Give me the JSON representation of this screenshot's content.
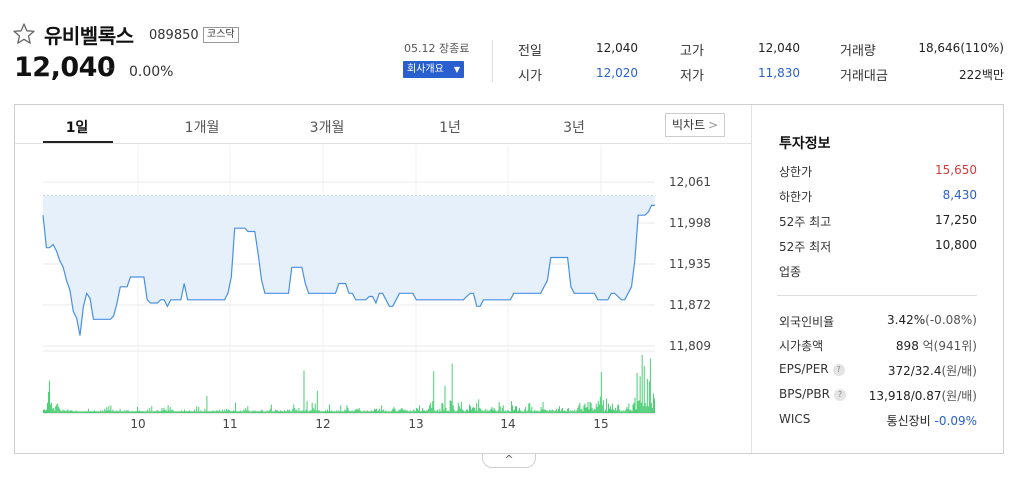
{
  "stock": {
    "name": "유비벨록스",
    "code": "089850",
    "market": "코스닥",
    "price": "12,040",
    "change_sign": "–",
    "change_rate": "0.00%",
    "date": "05.12 장종료",
    "corp_info_label": "회사개요",
    "quote": [
      {
        "label": "전일",
        "value": "12,040",
        "color": "#222222"
      },
      {
        "label": "시가",
        "value": "12,020",
        "color": "#2a5fcf"
      },
      {
        "label": "고가",
        "value": "12,040",
        "color": "#222222"
      },
      {
        "label": "저가",
        "value": "11,830",
        "color": "#2a5fcf"
      },
      {
        "label": "거래량",
        "value": "18,646(110%)",
        "color": "#222222"
      },
      {
        "label": "거래대금",
        "value": "222백만",
        "color": "#222222"
      }
    ]
  },
  "tabs": [
    "1일",
    "1개월",
    "3개월",
    "1년",
    "3년"
  ],
  "big_chart_label": "빅차트",
  "big_chart_arrow": ">",
  "fold_arrow": "^",
  "invest": {
    "title": "투자정보",
    "group1": [
      {
        "label": "상한가",
        "value": "15,650",
        "color": "#d63a3a"
      },
      {
        "label": "하한가",
        "value": "8,430",
        "color": "#2a5fcf"
      },
      {
        "label": "52주 최고",
        "value": "17,250",
        "color": "#222222"
      },
      {
        "label": "52주 최저",
        "value": "10,800",
        "color": "#222222"
      },
      {
        "label": "업종",
        "value": "",
        "color": "#222222"
      }
    ],
    "group2": [
      {
        "label": "외국인비율",
        "value": "3.42%",
        "extra": "(-0.08%)",
        "help": false
      },
      {
        "label": "시가총액",
        "value": "898",
        "extra": "억(941위)",
        "help": false
      },
      {
        "label": "EPS/PER",
        "value": "372/32.4",
        "extra": "(원/배)",
        "help": true
      },
      {
        "label": "BPS/PBR",
        "value": "13,918/0.87",
        "extra": "(원/배)",
        "help": true
      },
      {
        "label": "WICS",
        "value": "통신장비",
        "extra": "-0.09%",
        "help": false
      }
    ]
  },
  "chart_data": {
    "type": "area",
    "y_ticks": [
      "12,061",
      "11,998",
      "11,935",
      "11,872",
      "11,809"
    ],
    "ylim": [
      11809,
      12061
    ],
    "x_ticks": [
      "10",
      "11",
      "12",
      "13",
      "14",
      "15"
    ],
    "reference_value": 12040,
    "price": [
      12010,
      11960,
      11960,
      11965,
      11955,
      11940,
      11930,
      11910,
      11895,
      11862,
      11852,
      11825,
      11870,
      11890,
      11882,
      11850,
      11850,
      11850,
      11850,
      11850,
      11850,
      11855,
      11875,
      11900,
      11900,
      11900,
      11915,
      11915,
      11915,
      11915,
      11915,
      11880,
      11875,
      11875,
      11875,
      11880,
      11880,
      11870,
      11880,
      11880,
      11880,
      11880,
      11905,
      11880,
      11880,
      11880,
      11880,
      11880,
      11880,
      11880,
      11880,
      11880,
      11880,
      11880,
      11880,
      11890,
      11915,
      11990,
      11990,
      11990,
      11990,
      11985,
      11985,
      11985,
      11950,
      11910,
      11890,
      11890,
      11890,
      11890,
      11890,
      11890,
      11890,
      11890,
      11930,
      11930,
      11930,
      11930,
      11905,
      11890,
      11890,
      11890,
      11890,
      11890,
      11890,
      11890,
      11890,
      11890,
      11905,
      11905,
      11905,
      11890,
      11890,
      11880,
      11880,
      11880,
      11880,
      11885,
      11885,
      11875,
      11890,
      11890,
      11880,
      11870,
      11870,
      11880,
      11890,
      11890,
      11890,
      11890,
      11890,
      11880,
      11880,
      11880,
      11880,
      11880,
      11880,
      11880,
      11880,
      11880,
      11880,
      11880,
      11880,
      11880,
      11880,
      11880,
      11885,
      11890,
      11890,
      11870,
      11870,
      11880,
      11880,
      11880,
      11880,
      11880,
      11880,
      11880,
      11880,
      11880,
      11890,
      11890,
      11890,
      11890,
      11890,
      11890,
      11890,
      11890,
      11890,
      11900,
      11910,
      11945,
      11945,
      11945,
      11945,
      11945,
      11945,
      11900,
      11890,
      11890,
      11890,
      11890,
      11890,
      11890,
      11890,
      11880,
      11880,
      11880,
      11880,
      11890,
      11890,
      11885,
      11880,
      11880,
      11890,
      11900,
      11940,
      12010,
      12010,
      12010,
      12015,
      12025,
      12025
    ],
    "volume": [
      4,
      4,
      3,
      4,
      12,
      25,
      38,
      10,
      12,
      5,
      6,
      3,
      8,
      10,
      11,
      7,
      5,
      3,
      2,
      4,
      3,
      3,
      2,
      3,
      4,
      2,
      3,
      3,
      3,
      2,
      2,
      2,
      3,
      2,
      2,
      2,
      2,
      2,
      2,
      2,
      2,
      2,
      2,
      2,
      5,
      2,
      2,
      2,
      2,
      2,
      3,
      2,
      2,
      2,
      2,
      2,
      3,
      2,
      3,
      2,
      5,
      3,
      7,
      3,
      8,
      3,
      9,
      2,
      4,
      2,
      2,
      2,
      3,
      2,
      2,
      5,
      2,
      2,
      2,
      3,
      2,
      3,
      3,
      3,
      2,
      2,
      2,
      2,
      2,
      2,
      2,
      2,
      7,
      2,
      3,
      2,
      2,
      2,
      2,
      2,
      2,
      2,
      4,
      2,
      6,
      2,
      8,
      2,
      2,
      2,
      2,
      3,
      3,
      2,
      2,
      2,
      6,
      3,
      6,
      3,
      4,
      2,
      9,
      3,
      7,
      3,
      4,
      3,
      2,
      2,
      2,
      2,
      2,
      2,
      2,
      3,
      2,
      2,
      4,
      2,
      2,
      2,
      2,
      3,
      2,
      2,
      2,
      2,
      4,
      2,
      8,
      2,
      7,
      2,
      3,
      2,
      2,
      2,
      5,
      2,
      20,
      2,
      2,
      2,
      2,
      2,
      3,
      2,
      2,
      3,
      3,
      2,
      4,
      2,
      2,
      4,
      2,
      4,
      2,
      5,
      3,
      4,
      3,
      2,
      2,
      2,
      3,
      2,
      12,
      2,
      2,
      2,
      2,
      3,
      2,
      2,
      4,
      3,
      6,
      3,
      8,
      3,
      2,
      2,
      2,
      3,
      2,
      3,
      2,
      2,
      2,
      2,
      2,
      3,
      4,
      2,
      2,
      2,
      2,
      3,
      2,
      3,
      5,
      10,
      2,
      2,
      2,
      4,
      3,
      3,
      2,
      2,
      3,
      2,
      2,
      2,
      3,
      2,
      2,
      4,
      3,
      4,
      2,
      2,
      5,
      10,
      6,
      3,
      4,
      2,
      6,
      2,
      3,
      2,
      3,
      50,
      2,
      4,
      14,
      2,
      2,
      3,
      3,
      12,
      6,
      4,
      11,
      3,
      26,
      3,
      3,
      2,
      2,
      2,
      2,
      2,
      3,
      2,
      4,
      2,
      10,
      2,
      3,
      2,
      2,
      2,
      2,
      3,
      2,
      3,
      2,
      9,
      2,
      2,
      2,
      4,
      3,
      9,
      6,
      3,
      2,
      2,
      3,
      2,
      2,
      4,
      4,
      5,
      4,
      6,
      3,
      2,
      2,
      2,
      3,
      2,
      2,
      3,
      2,
      2,
      2,
      3,
      2,
      2,
      5,
      4,
      5,
      2,
      3,
      5,
      2,
      9,
      3,
      4,
      2,
      3,
      2,
      2,
      2,
      2,
      2,
      3,
      5,
      7,
      5,
      2,
      2,
      2,
      4,
      3,
      5,
      6,
      4,
      3,
      4,
      3,
      3,
      2,
      2,
      3,
      2,
      2,
      4,
      3,
      2,
      6,
      5,
      3,
      9,
      2,
      2,
      6,
      3,
      3,
      2,
      3,
      3,
      5,
      9,
      12,
      6,
      14,
      49,
      3,
      2,
      3,
      4,
      2,
      5,
      2,
      12,
      11,
      3,
      32,
      6,
      2,
      3,
      2,
      15,
      14,
      58,
      9,
      4,
      2,
      2,
      3,
      12,
      8,
      5,
      13,
      4,
      3,
      2,
      2,
      4,
      4,
      2,
      10,
      8,
      4,
      6,
      7,
      6,
      3,
      12,
      3,
      16,
      6,
      5,
      3,
      3,
      2,
      3,
      5,
      2,
      4,
      2,
      3,
      5,
      7,
      3,
      6,
      4,
      2,
      2,
      3,
      13,
      8,
      2,
      6,
      9,
      2,
      3,
      2,
      3,
      3,
      2,
      2,
      14,
      9,
      3,
      4,
      8,
      8,
      2,
      3,
      6,
      3,
      2,
      2,
      2,
      4,
      7,
      2,
      3,
      11,
      12,
      3,
      7,
      2,
      2,
      4,
      2,
      3,
      2,
      2,
      2,
      7,
      4,
      13,
      4,
      4,
      3,
      3,
      2,
      4,
      3,
      3,
      4,
      3,
      2,
      3,
      5,
      2,
      5,
      8,
      2,
      4,
      6,
      2,
      3,
      2,
      2,
      5,
      6,
      2,
      3,
      2,
      3,
      2,
      4,
      2,
      3,
      6,
      9,
      12,
      4,
      5,
      2,
      9,
      11,
      6,
      7,
      13,
      4,
      13,
      12,
      6,
      3,
      5,
      4,
      11,
      7,
      14,
      10,
      19,
      48,
      9,
      15,
      2,
      4,
      17,
      2,
      11,
      5,
      8,
      4,
      11,
      4,
      3,
      6,
      3,
      9,
      10,
      4,
      2,
      3,
      2,
      3,
      2,
      4,
      7,
      5,
      11,
      3,
      4,
      2,
      10,
      12,
      18,
      4,
      47,
      14,
      15,
      43,
      12,
      68,
      8,
      55,
      12,
      8,
      40,
      8,
      37,
      64,
      12,
      6,
      23,
      17
    ]
  }
}
